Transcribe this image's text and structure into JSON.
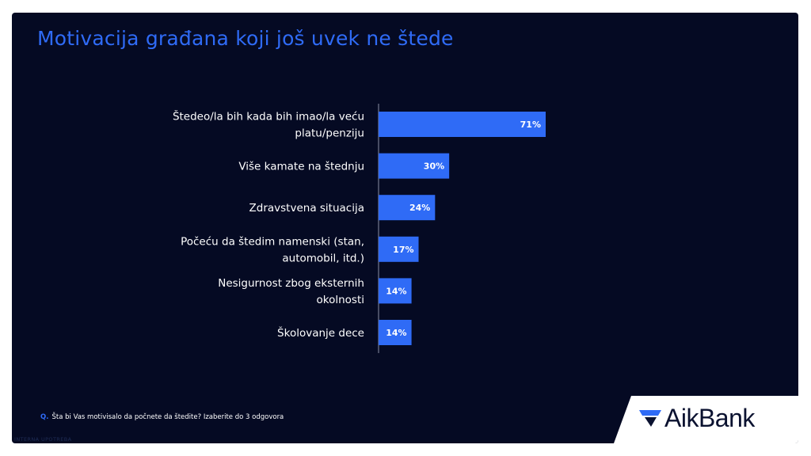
{
  "title": "Motivacija građana koji još uvek ne štede",
  "chart_data": {
    "type": "bar",
    "orientation": "horizontal",
    "categories": [
      [
        "Štedeo/la bih kada bih imao/la veću",
        "platu/penziju"
      ],
      [
        "Više kamate na štednju"
      ],
      [
        "Zdravstvena situacija"
      ],
      [
        "Počeću da štedim namenski (stan,",
        "automobil, itd.)"
      ],
      [
        "Nesigurnost zbog eksternih",
        "okolnosti"
      ],
      [
        "Školovanje dece"
      ]
    ],
    "values": [
      71,
      30,
      24,
      17,
      14,
      14
    ],
    "value_labels": [
      "71%",
      "30%",
      "24%",
      "17%",
      "14%",
      "14%"
    ],
    "value_suffix": "%",
    "xlim": [
      0,
      100
    ],
    "bar_color": "#2f6bf6"
  },
  "footnote": {
    "prefix": "Q.",
    "text": "Šta bi Vas motivisalo da počnete da štedite? Izaberite do 3 odgovora"
  },
  "internal_label": "INTERNA UPOTREBA",
  "logo": {
    "text": "AikBank",
    "mark": "aikbank-logo-icon"
  },
  "colors": {
    "background": "#050a23",
    "accent": "#2f6bf6",
    "text": "#ffffff"
  }
}
